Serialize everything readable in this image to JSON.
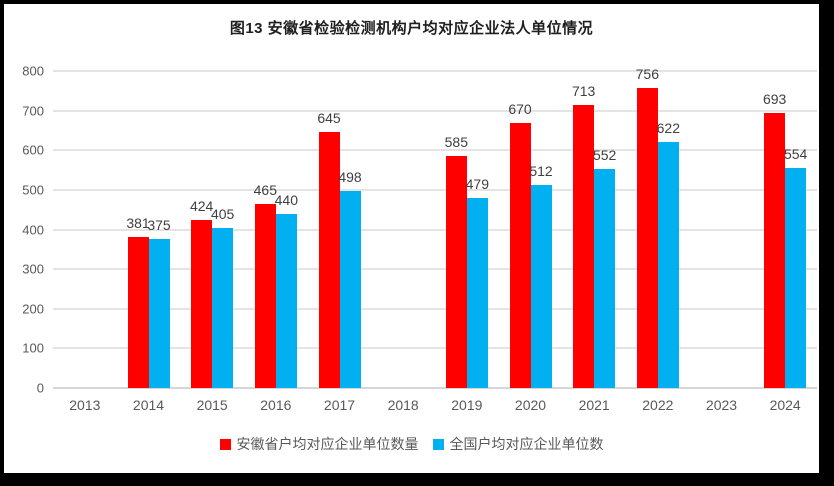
{
  "chart_data": {
    "type": "bar",
    "title": "图13  安徽省检验检测机构户均对应企业法人单位情况",
    "categories": [
      "2013",
      "2014",
      "2015",
      "2016",
      "2017",
      "2018",
      "2019",
      "2020",
      "2021",
      "2022",
      "2023",
      "2024"
    ],
    "series": [
      {
        "name": "安徽省户均对应企业单位数量",
        "color": "#FF0000",
        "values": [
          null,
          381,
          424,
          465,
          645,
          null,
          585,
          670,
          713,
          756,
          null,
          693
        ]
      },
      {
        "name": "全国户均对应企业单位数",
        "color": "#00B0F0",
        "values": [
          null,
          375,
          405,
          440,
          498,
          null,
          479,
          512,
          552,
          622,
          null,
          554
        ]
      }
    ],
    "xlabel": "",
    "ylabel": "",
    "ylim": [
      0,
      800
    ],
    "yticks": [
      0,
      100,
      200,
      300,
      400,
      500,
      600,
      700,
      800
    ],
    "grid": "horizontal",
    "data_labels": true,
    "legend_position": "bottom",
    "colors": {
      "frame_border": "#000000",
      "gridline": "#E4E4E4",
      "axis_line": "#D6D6D6",
      "axis_text": "#595959",
      "data_label_text": "#404040",
      "title_text": "#1F1F1F",
      "background": "#FFFFFF"
    }
  }
}
